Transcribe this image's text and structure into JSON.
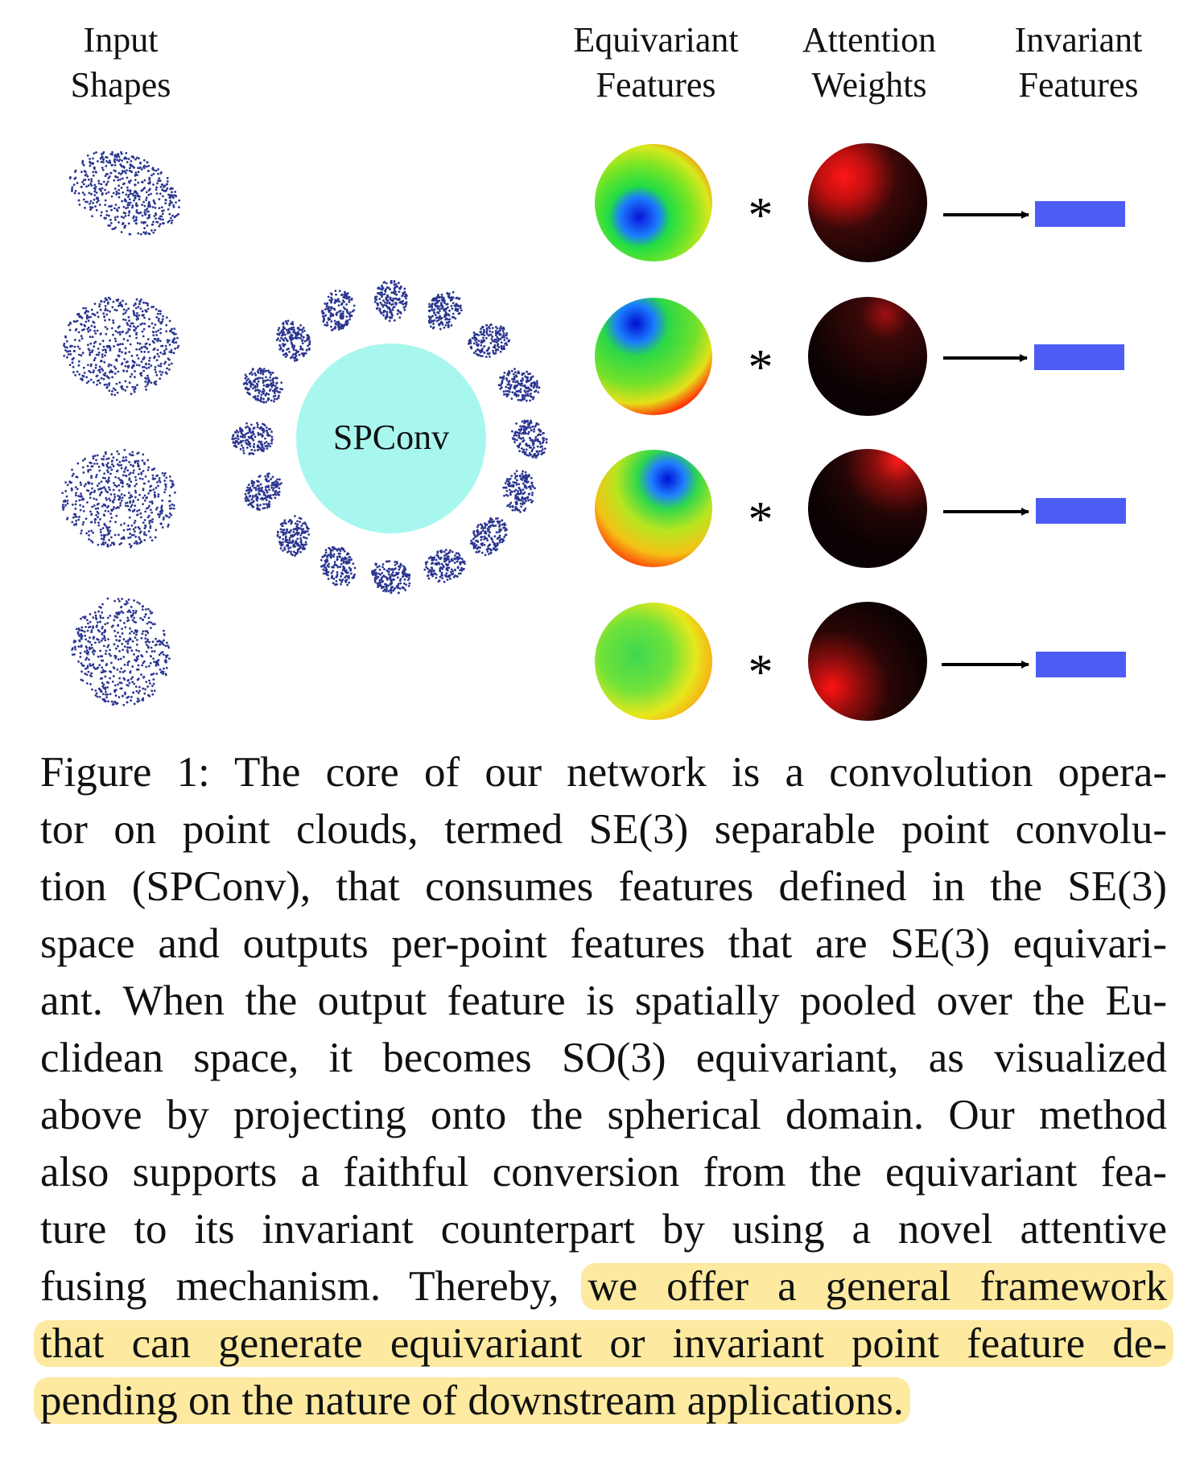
{
  "figure": {
    "headers": {
      "input_shapes": [
        "Input",
        "Shapes"
      ],
      "equivariant_features": [
        "Equivariant",
        "Features"
      ],
      "attention_weights": [
        "Attention",
        "Weights"
      ],
      "invariant_features": [
        "Invariant",
        "Features"
      ]
    },
    "center_label": "SPConv",
    "operator_symbol": "*",
    "rows": 4,
    "colors": {
      "points": "#2b3690",
      "spconv_circle": "#a8f7ee",
      "invariant_bar": "#4d5cf5",
      "arrow": "#000000",
      "highlight": "#fdeaa0"
    }
  },
  "caption": {
    "lines": [
      "Figure 1:  The core of our network is a convolution opera-",
      "tor on point clouds, termed SE(3) separable point convolu-",
      "tion (SPConv), that consumes features defined in the SE(3)",
      "space and outputs per-point features that are SE(3) equivari-",
      "ant. When the output feature is spatially pooled over the Eu-",
      "clidean space, it becomes SO(3) equivariant, as visualized",
      "above by projecting onto the spherical domain. Our method",
      "also supports a faithful conversion from the equivariant fea-",
      "ture to its invariant counterpart by using a novel attentive"
    ],
    "line10_plain": "fusing mechanism. Thereby, ",
    "line10_highlight": "we offer a general framework",
    "line11_highlight": "that can generate equivariant or invariant point feature de-",
    "line12_highlight": "pending on the nature of downstream applications."
  }
}
